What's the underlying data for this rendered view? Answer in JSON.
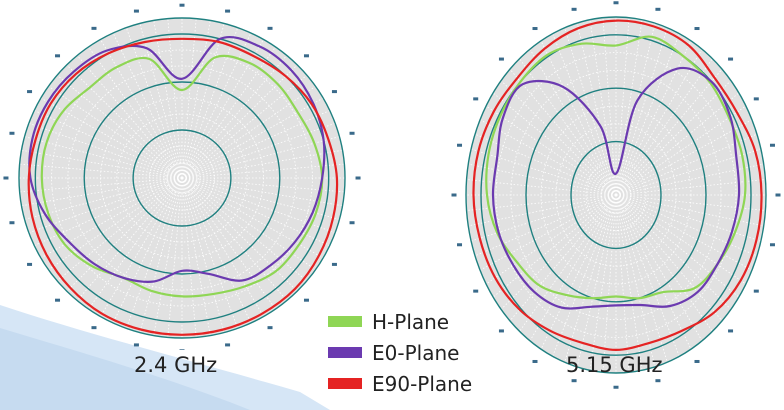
{
  "colors": {
    "h_plane": "#8fd655",
    "e0_plane": "#6b3ab0",
    "e90_plane": "#e52323",
    "grid": "#1f8080",
    "plot_fill": "#e1e1e1",
    "background_swoosh": "#d6e6f6"
  },
  "chart_data": [
    {
      "type": "polar",
      "frequency_label": "2.4 GHz",
      "angle_unit": "deg",
      "radial_unit": "normalized",
      "rlim": [
        0,
        1
      ],
      "grid": true,
      "legend": "shared-center",
      "series": [
        {
          "name": "H-Plane",
          "color": "#8fd655",
          "angles": [
            0,
            15,
            30,
            45,
            60,
            75,
            90,
            105,
            120,
            135,
            150,
            165,
            180,
            195,
            210,
            225,
            240,
            255,
            270,
            285,
            300,
            315,
            330,
            345
          ],
          "values": [
            0.55,
            0.78,
            0.83,
            0.83,
            0.82,
            0.84,
            0.86,
            0.85,
            0.83,
            0.82,
            0.78,
            0.75,
            0.74,
            0.73,
            0.72,
            0.78,
            0.83,
            0.85,
            0.86,
            0.86,
            0.84,
            0.8,
            0.8,
            0.77
          ]
        },
        {
          "name": "E0-Plane",
          "color": "#6b3ab0",
          "angles": [
            0,
            15,
            30,
            45,
            60,
            75,
            90,
            105,
            120,
            135,
            150,
            165,
            180,
            195,
            210,
            225,
            240,
            255,
            270,
            285,
            300,
            315,
            330,
            345
          ],
          "values": [
            0.62,
            0.9,
            0.95,
            0.95,
            0.93,
            0.9,
            0.86,
            0.83,
            0.8,
            0.77,
            0.74,
            0.62,
            0.58,
            0.67,
            0.72,
            0.76,
            0.8,
            0.87,
            0.93,
            0.95,
            0.95,
            0.94,
            0.92,
            0.84
          ]
        },
        {
          "name": "E90-Plane",
          "color": "#e52323",
          "angles": [
            0,
            15,
            30,
            45,
            60,
            75,
            90,
            105,
            120,
            135,
            150,
            165,
            180,
            195,
            210,
            225,
            240,
            255,
            270,
            285,
            300,
            315,
            330,
            345
          ],
          "values": [
            0.87,
            0.88,
            0.88,
            0.9,
            0.92,
            0.93,
            0.95,
            0.96,
            0.97,
            0.98,
            0.98,
            0.98,
            0.98,
            0.98,
            0.98,
            0.97,
            0.96,
            0.95,
            0.94,
            0.93,
            0.93,
            0.92,
            0.9,
            0.88
          ]
        }
      ]
    },
    {
      "type": "polar",
      "frequency_label": "5.15 GHz",
      "angle_unit": "deg",
      "radial_unit": "normalized",
      "rlim": [
        0,
        1
      ],
      "grid": true,
      "legend": "shared-center",
      "series": [
        {
          "name": "H-Plane",
          "color": "#8fd655",
          "angles": [
            0,
            15,
            30,
            45,
            60,
            75,
            90,
            105,
            120,
            135,
            150,
            165,
            180,
            195,
            210,
            225,
            240,
            255,
            270,
            285,
            300,
            315,
            330,
            345
          ],
          "values": [
            0.84,
            0.92,
            0.9,
            0.89,
            0.87,
            0.87,
            0.86,
            0.82,
            0.78,
            0.74,
            0.63,
            0.6,
            0.57,
            0.6,
            0.65,
            0.72,
            0.76,
            0.82,
            0.86,
            0.88,
            0.89,
            0.9,
            0.91,
            0.88
          ]
        },
        {
          "name": "E0-Plane",
          "color": "#6b3ab0",
          "angles": [
            0,
            15,
            30,
            45,
            60,
            75,
            90,
            105,
            120,
            135,
            150,
            165,
            180,
            195,
            210,
            225,
            240,
            255,
            270,
            285,
            300,
            315,
            330,
            345
          ],
          "values": [
            0.12,
            0.55,
            0.82,
            0.9,
            0.88,
            0.83,
            0.82,
            0.8,
            0.78,
            0.77,
            0.72,
            0.64,
            0.62,
            0.65,
            0.73,
            0.77,
            0.79,
            0.81,
            0.82,
            0.82,
            0.87,
            0.88,
            0.7,
            0.4
          ]
        },
        {
          "name": "E90-Plane",
          "color": "#e52323",
          "angles": [
            0,
            15,
            30,
            45,
            60,
            75,
            90,
            105,
            120,
            135,
            150,
            165,
            180,
            195,
            210,
            225,
            240,
            255,
            270,
            285,
            300,
            315,
            330,
            345
          ],
          "values": [
            0.98,
            0.98,
            0.97,
            0.93,
            0.93,
            0.96,
            0.97,
            0.97,
            0.96,
            0.93,
            0.88,
            0.86,
            0.87,
            0.86,
            0.88,
            0.91,
            0.93,
            0.94,
            0.95,
            0.95,
            0.94,
            0.93,
            0.95,
            0.97
          ]
        }
      ]
    }
  ],
  "legend": {
    "items": [
      {
        "label": "H-Plane",
        "color": "#8fd655"
      },
      {
        "label": "E0-Plane",
        "color": "#6b3ab0"
      },
      {
        "label": "E90-Plane",
        "color": "#e52323"
      }
    ]
  }
}
